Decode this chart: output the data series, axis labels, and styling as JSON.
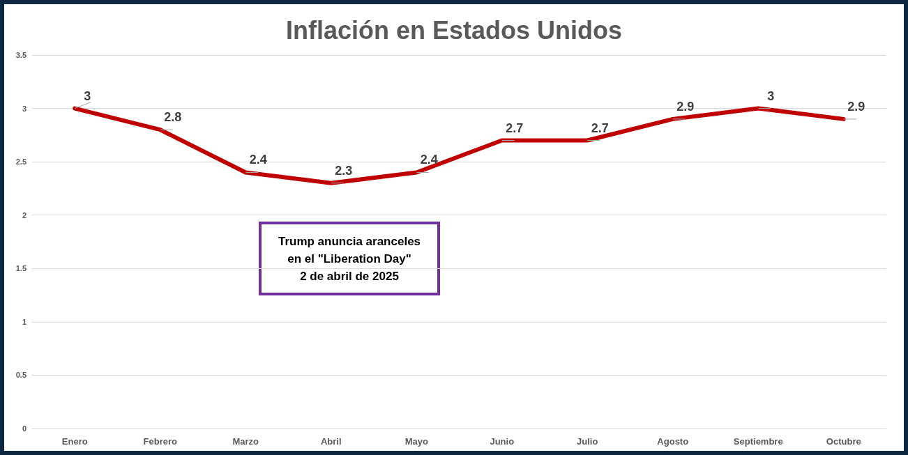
{
  "chart_data": {
    "type": "line",
    "title": "Inflación en Estados Unidos",
    "categories": [
      "Enero",
      "Febrero",
      "Marzo",
      "Abril",
      "Mayo",
      "Junio",
      "Julio",
      "Agosto",
      "Septiembre",
      "Octubre"
    ],
    "series": [
      {
        "color": "#c00000",
        "values": [
          3,
          2.8,
          2.4,
          2.3,
          2.4,
          2.7,
          2.7,
          2.9,
          3,
          2.9
        ]
      }
    ],
    "ylim": [
      0,
      3.5
    ],
    "yticks": [
      0,
      0.5,
      1,
      1.5,
      2,
      2.5,
      3,
      3.5
    ],
    "grid": "y",
    "marker": "none",
    "line_style": "solid",
    "data_labels": true,
    "annotations": [
      "Trump anuncia aranceles\nen el \"Liberation Day\"\n2 de abril de 2025"
    ]
  }
}
